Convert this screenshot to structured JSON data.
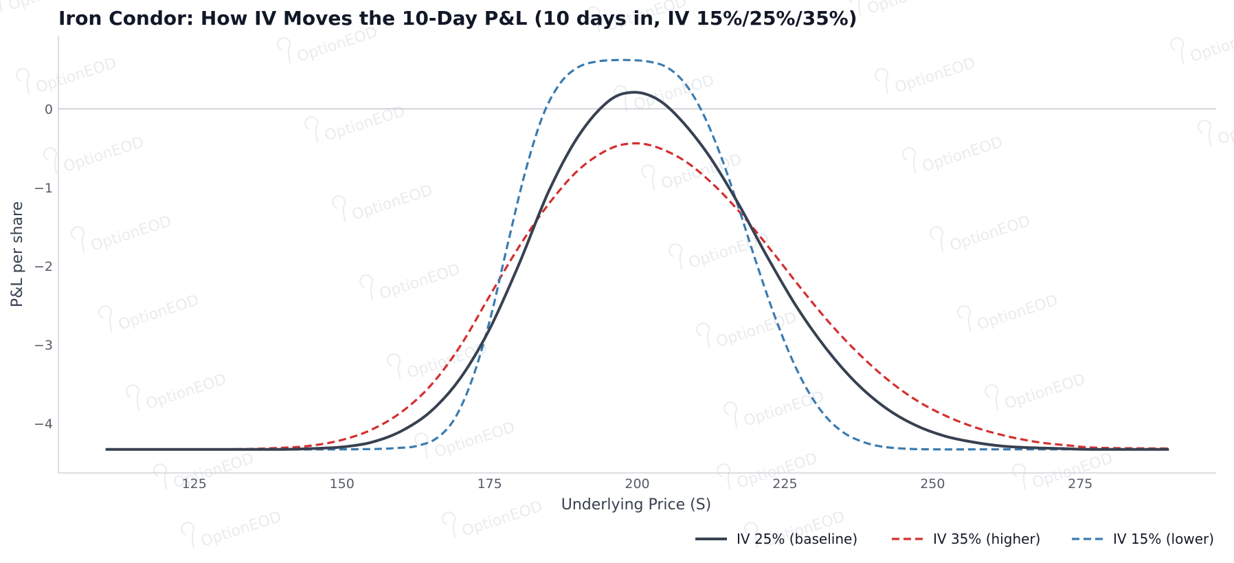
{
  "chart_data": {
    "type": "line",
    "title": "Iron Condor: How IV Moves the 10-Day P&L (10 days in, IV 15%/25%/35%)",
    "xlabel": "Underlying Price (S)",
    "ylabel": "P&L per share",
    "xlim": [
      102,
      298
    ],
    "ylim": [
      -4.63,
      0.93
    ],
    "x_ticks": [
      125,
      150,
      175,
      200,
      225,
      250,
      275
    ],
    "y_ticks": [
      0,
      -1,
      -2,
      -3,
      -4
    ],
    "y_tick_labels": [
      "0",
      "−1",
      "−2",
      "−3",
      "−4"
    ],
    "zero_line": true,
    "grid": false,
    "legend_position": "bottom-right",
    "watermark": "OptionEOD",
    "series": [
      {
        "name": "IV 25% (baseline)",
        "color": "#374151",
        "style": "solid",
        "x": [
          110,
          130,
          140,
          145,
          150,
          155,
          160,
          165,
          170,
          175,
          180,
          185,
          190,
          195,
          199,
          203,
          207,
          212,
          217,
          222,
          227,
          232,
          237,
          242,
          247,
          252,
          257,
          262,
          267,
          272,
          277,
          290
        ],
        "y": [
          -4.33,
          -4.33,
          -4.33,
          -4.32,
          -4.3,
          -4.24,
          -4.1,
          -3.85,
          -3.43,
          -2.8,
          -1.97,
          -1.05,
          -0.35,
          0.09,
          0.21,
          0.14,
          -0.11,
          -0.58,
          -1.19,
          -1.88,
          -2.52,
          -3.05,
          -3.48,
          -3.8,
          -4.02,
          -4.16,
          -4.24,
          -4.29,
          -4.31,
          -4.32,
          -4.33,
          -4.33
        ]
      },
      {
        "name": "IV 35% (higher)",
        "color": "#d32f2f",
        "style": "dashed",
        "x": [
          110,
          130,
          140,
          145,
          150,
          155,
          160,
          165,
          170,
          175,
          180,
          185,
          190,
          195,
          199,
          203,
          208,
          213,
          218,
          223,
          228,
          233,
          238,
          243,
          248,
          253,
          258,
          263,
          268,
          273,
          278,
          290
        ],
        "y": [
          -4.33,
          -4.33,
          -4.31,
          -4.28,
          -4.21,
          -4.08,
          -3.86,
          -3.52,
          -3.02,
          -2.38,
          -1.75,
          -1.21,
          -0.78,
          -0.52,
          -0.44,
          -0.48,
          -0.66,
          -0.97,
          -1.37,
          -1.83,
          -2.31,
          -2.76,
          -3.15,
          -3.48,
          -3.74,
          -3.93,
          -4.07,
          -4.17,
          -4.24,
          -4.28,
          -4.31,
          -4.32
        ]
      },
      {
        "name": "IV 15% (lower)",
        "color": "#3a7bb0",
        "style": "dashed",
        "x": [
          110,
          150,
          160,
          163,
          166,
          169,
          172,
          175,
          178,
          181,
          184,
          187,
          190,
          193,
          196,
          199,
          202,
          205,
          208,
          211,
          214,
          217,
          220,
          223,
          226,
          229,
          232,
          235,
          238,
          241,
          245,
          250,
          260,
          290
        ],
        "y": [
          -4.33,
          -4.33,
          -4.31,
          -4.28,
          -4.19,
          -3.95,
          -3.45,
          -2.7,
          -1.74,
          -0.81,
          -0.09,
          0.33,
          0.53,
          0.6,
          0.62,
          0.62,
          0.6,
          0.53,
          0.33,
          -0.04,
          -0.57,
          -1.22,
          -1.92,
          -2.58,
          -3.15,
          -3.6,
          -3.92,
          -4.12,
          -4.23,
          -4.29,
          -4.32,
          -4.33,
          -4.33,
          -4.33
        ]
      }
    ]
  }
}
